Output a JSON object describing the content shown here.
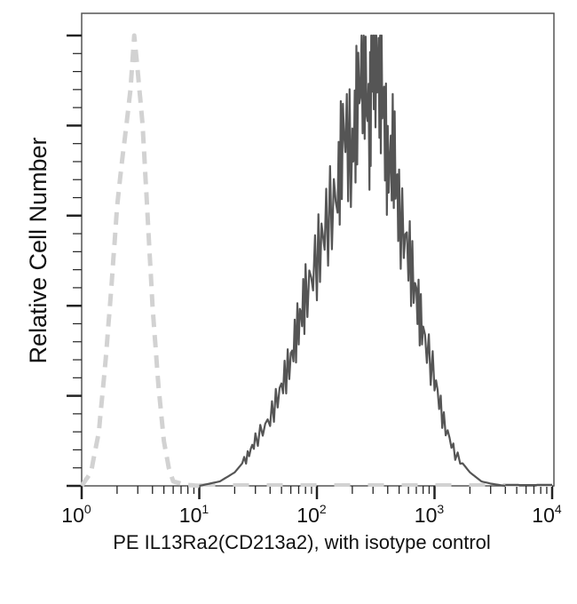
{
  "chart_data": {
    "type": "line",
    "title": "",
    "xlabel": "PE IL13Ra2(CD213a2), with isotype control",
    "ylabel": "Relative Cell Number",
    "xscale": "log",
    "xlim": [
      1,
      10000
    ],
    "ylim": [
      0,
      100
    ],
    "x_ticks": [
      {
        "base": "10",
        "exp": "0",
        "value": 1
      },
      {
        "base": "10",
        "exp": "1",
        "value": 10
      },
      {
        "base": "10",
        "exp": "2",
        "value": 100
      },
      {
        "base": "10",
        "exp": "3",
        "value": 1000
      },
      {
        "base": "10",
        "exp": "4",
        "value": 10000
      }
    ],
    "y_ticks_labeled": false,
    "grid": false,
    "legend": null,
    "series": [
      {
        "name": "Isotype control",
        "style": "dashed",
        "color": "#d2d2d2",
        "x": [
          1.0,
          1.2,
          1.4,
          1.6,
          1.8,
          2.0,
          2.2,
          2.4,
          2.6,
          2.8,
          3.0,
          3.3,
          3.6,
          4.0,
          4.5,
          5.0,
          5.5,
          6.0,
          7.0,
          8.0,
          10.0
        ],
        "values": [
          0,
          3,
          12,
          28,
          45,
          62,
          72,
          80,
          88,
          100,
          92,
          80,
          62,
          40,
          22,
          10,
          4,
          1,
          0.5,
          0.2,
          0
        ]
      },
      {
        "name": "IL13Ra2 (CD213a2)",
        "style": "solid",
        "color": "#555555",
        "x": [
          10,
          15,
          20,
          25,
          30,
          40,
          50,
          60,
          70,
          80,
          100,
          120,
          150,
          170,
          200,
          220,
          250,
          280,
          300,
          330,
          360,
          400,
          450,
          500,
          600,
          700,
          800,
          1000,
          1200,
          1500,
          2000,
          2500,
          3000,
          4000
        ],
        "values": [
          0,
          1,
          3,
          6,
          10,
          15,
          22,
          28,
          36,
          42,
          50,
          58,
          65,
          80,
          72,
          85,
          95,
          78,
          100,
          92,
          88,
          70,
          75,
          60,
          52,
          42,
          34,
          24,
          14,
          7,
          3,
          1,
          0.5,
          0
        ]
      }
    ]
  }
}
